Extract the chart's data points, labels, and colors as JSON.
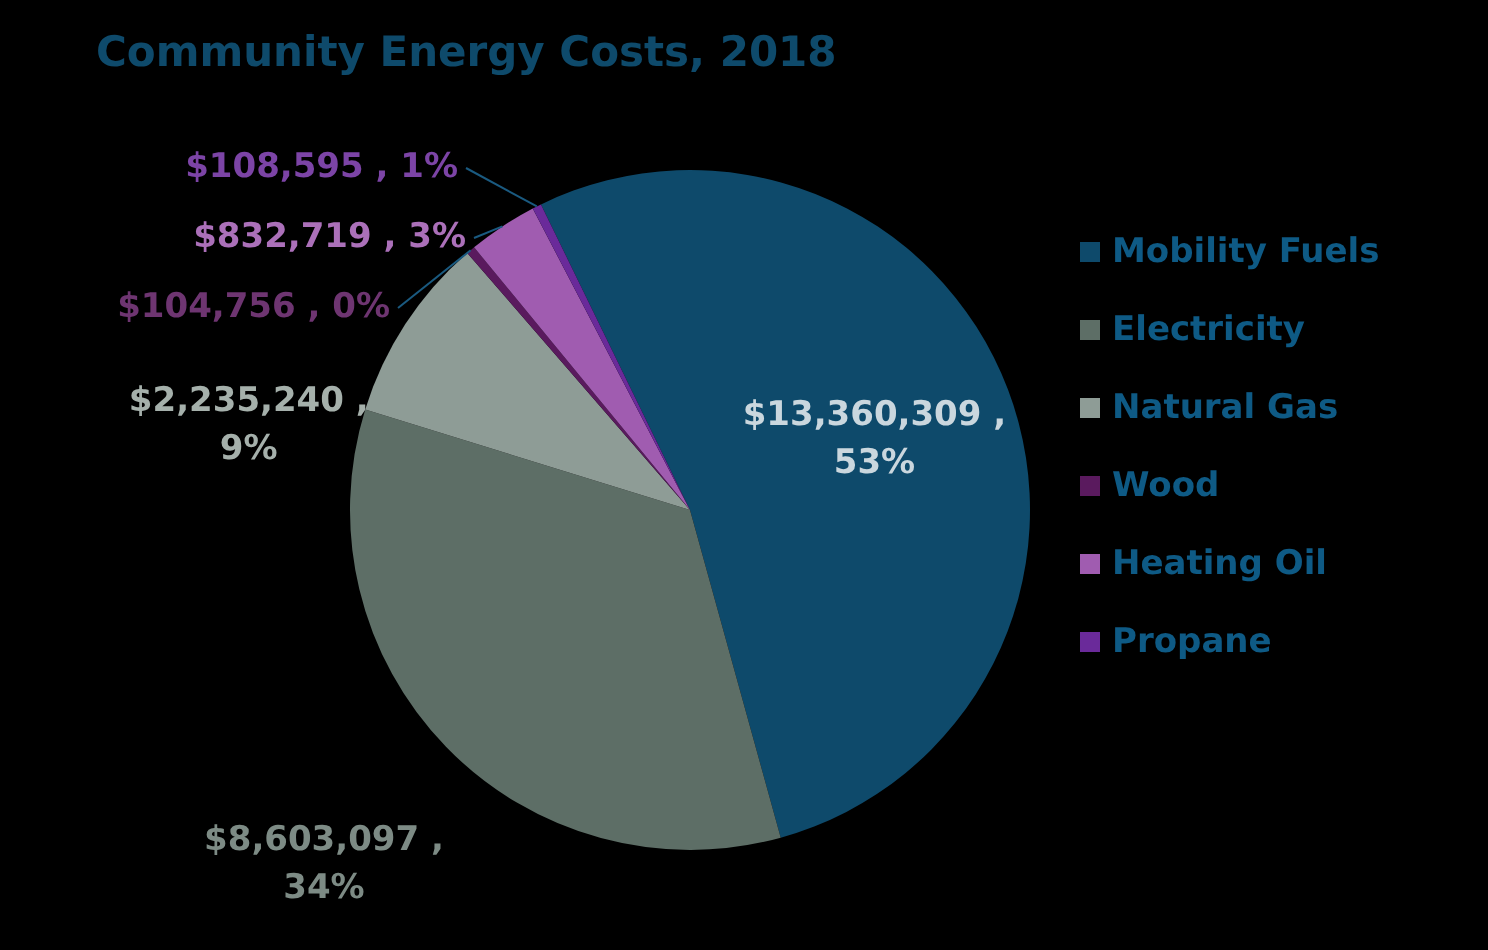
{
  "chart_data": {
    "type": "pie",
    "title": "Community Energy Costs, 2018",
    "categories": [
      "Mobility Fuels",
      "Electricity",
      "Natural Gas",
      "Wood",
      "Heating Oil",
      "Propane"
    ],
    "values": [
      13360309,
      8603097,
      2235240,
      104756,
      832719,
      108595
    ],
    "value_labels": [
      "$13,360,309 , 53%",
      "$8,603,097 , 34%",
      "$2,235,240 , 9%",
      "$104,756 , 0%",
      "$832,719 , 3%",
      "$108,595 , 1%"
    ],
    "colors": [
      "#0e4a6b",
      "#5d6e66",
      "#8e9c96",
      "#5a1a5e",
      "#a05cb0",
      "#6a2a9a"
    ],
    "legend": "right"
  }
}
